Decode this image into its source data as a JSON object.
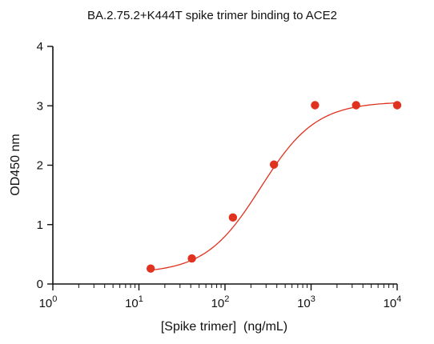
{
  "chart_data": {
    "type": "scatter",
    "title": "BA.2.75.2+K444T spike trimer binding to ACE2",
    "xlabel": "[Spike trimer]  (ng/mL)",
    "ylabel": "OD450 nm",
    "x_scale": "log10",
    "xlim": [
      1,
      10000
    ],
    "ylim": [
      0,
      4
    ],
    "x_ticks": [
      1,
      10,
      100,
      1000,
      10000
    ],
    "x_tick_labels": [
      {
        "base": "10",
        "exp": "0"
      },
      {
        "base": "10",
        "exp": "1"
      },
      {
        "base": "10",
        "exp": "2"
      },
      {
        "base": "10",
        "exp": "3"
      },
      {
        "base": "10",
        "exp": "4"
      }
    ],
    "y_ticks": [
      0,
      1,
      2,
      3,
      4
    ],
    "y_tick_labels": [
      "0",
      "1",
      "2",
      "3",
      "4"
    ],
    "grid": false,
    "legend": "none",
    "series": [
      {
        "x": [
          13.7,
          41.2,
          123.5,
          370.4,
          1111,
          3333,
          10000
        ],
        "y": [
          0.26,
          0.43,
          1.12,
          2.01,
          3.01,
          3.01,
          3.01
        ],
        "marker": "circle",
        "color": "#e0321e"
      }
    ],
    "fit": {
      "model": "four-parameter logistic",
      "bottom": 0.18,
      "top": 3.07,
      "ec50": 260,
      "hill": 1.35,
      "color": "#e0321e"
    },
    "colors": {
      "axis": "#111111",
      "text": "#111111"
    }
  }
}
